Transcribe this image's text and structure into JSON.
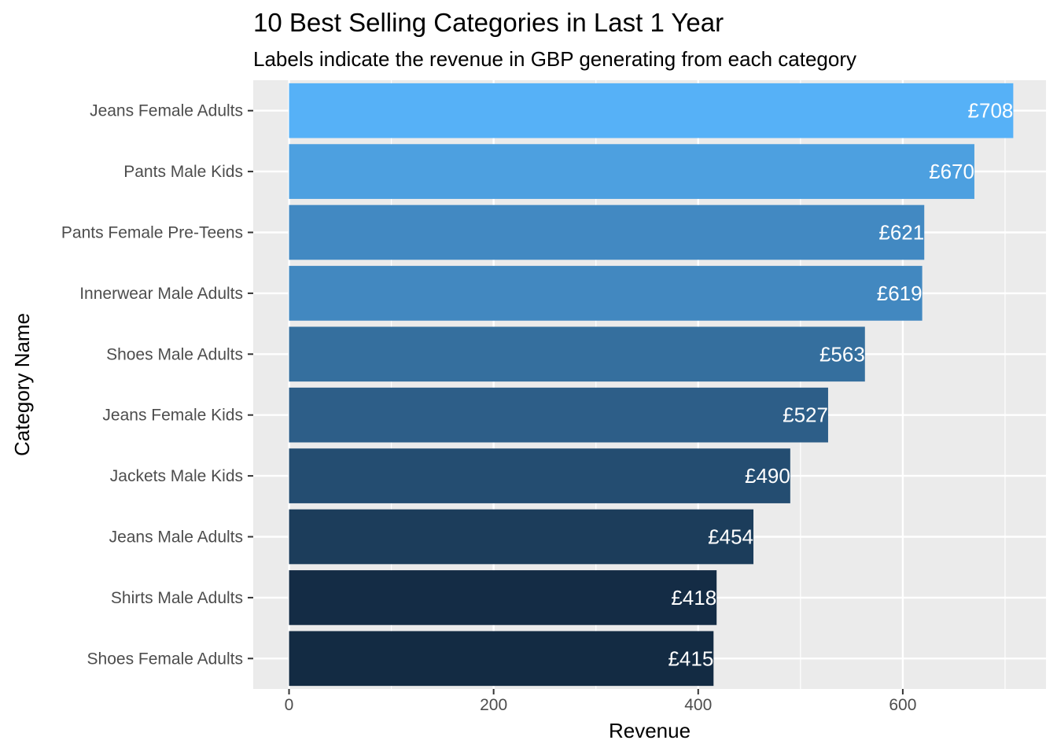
{
  "chart_data": {
    "type": "bar",
    "orientation": "horizontal",
    "title": "10 Best Selling Categories in Last 1 Year",
    "subtitle": "Labels indicate the revenue in GBP generating from each category",
    "xlabel": "Revenue",
    "ylabel": "Category Name",
    "xlim": [
      -35,
      740
    ],
    "x_ticks": [
      0,
      200,
      400,
      600
    ],
    "grid": true,
    "legend": "none",
    "label_prefix": "£",
    "categories": [
      "Jeans Female Adults",
      "Pants Male Kids",
      "Pants Female Pre-Teens",
      "Innerwear Male Adults",
      "Shoes Male Adults",
      "Jeans Female Kids",
      "Jackets Male Kids",
      "Jeans Male Adults",
      "Shirts Male Adults",
      "Shoes Female Adults"
    ],
    "values": [
      708,
      670,
      621,
      619,
      563,
      527,
      490,
      454,
      418,
      415
    ],
    "data_labels": [
      "£708",
      "£670",
      "£621",
      "£619",
      "£563",
      "£527",
      "£490",
      "£454",
      "£418",
      "£415"
    ],
    "colors": {
      "panel_background": "#ebebeb",
      "grid": "#ffffff",
      "bar_low": "#132b43",
      "bar_high": "#56b1f7"
    }
  }
}
